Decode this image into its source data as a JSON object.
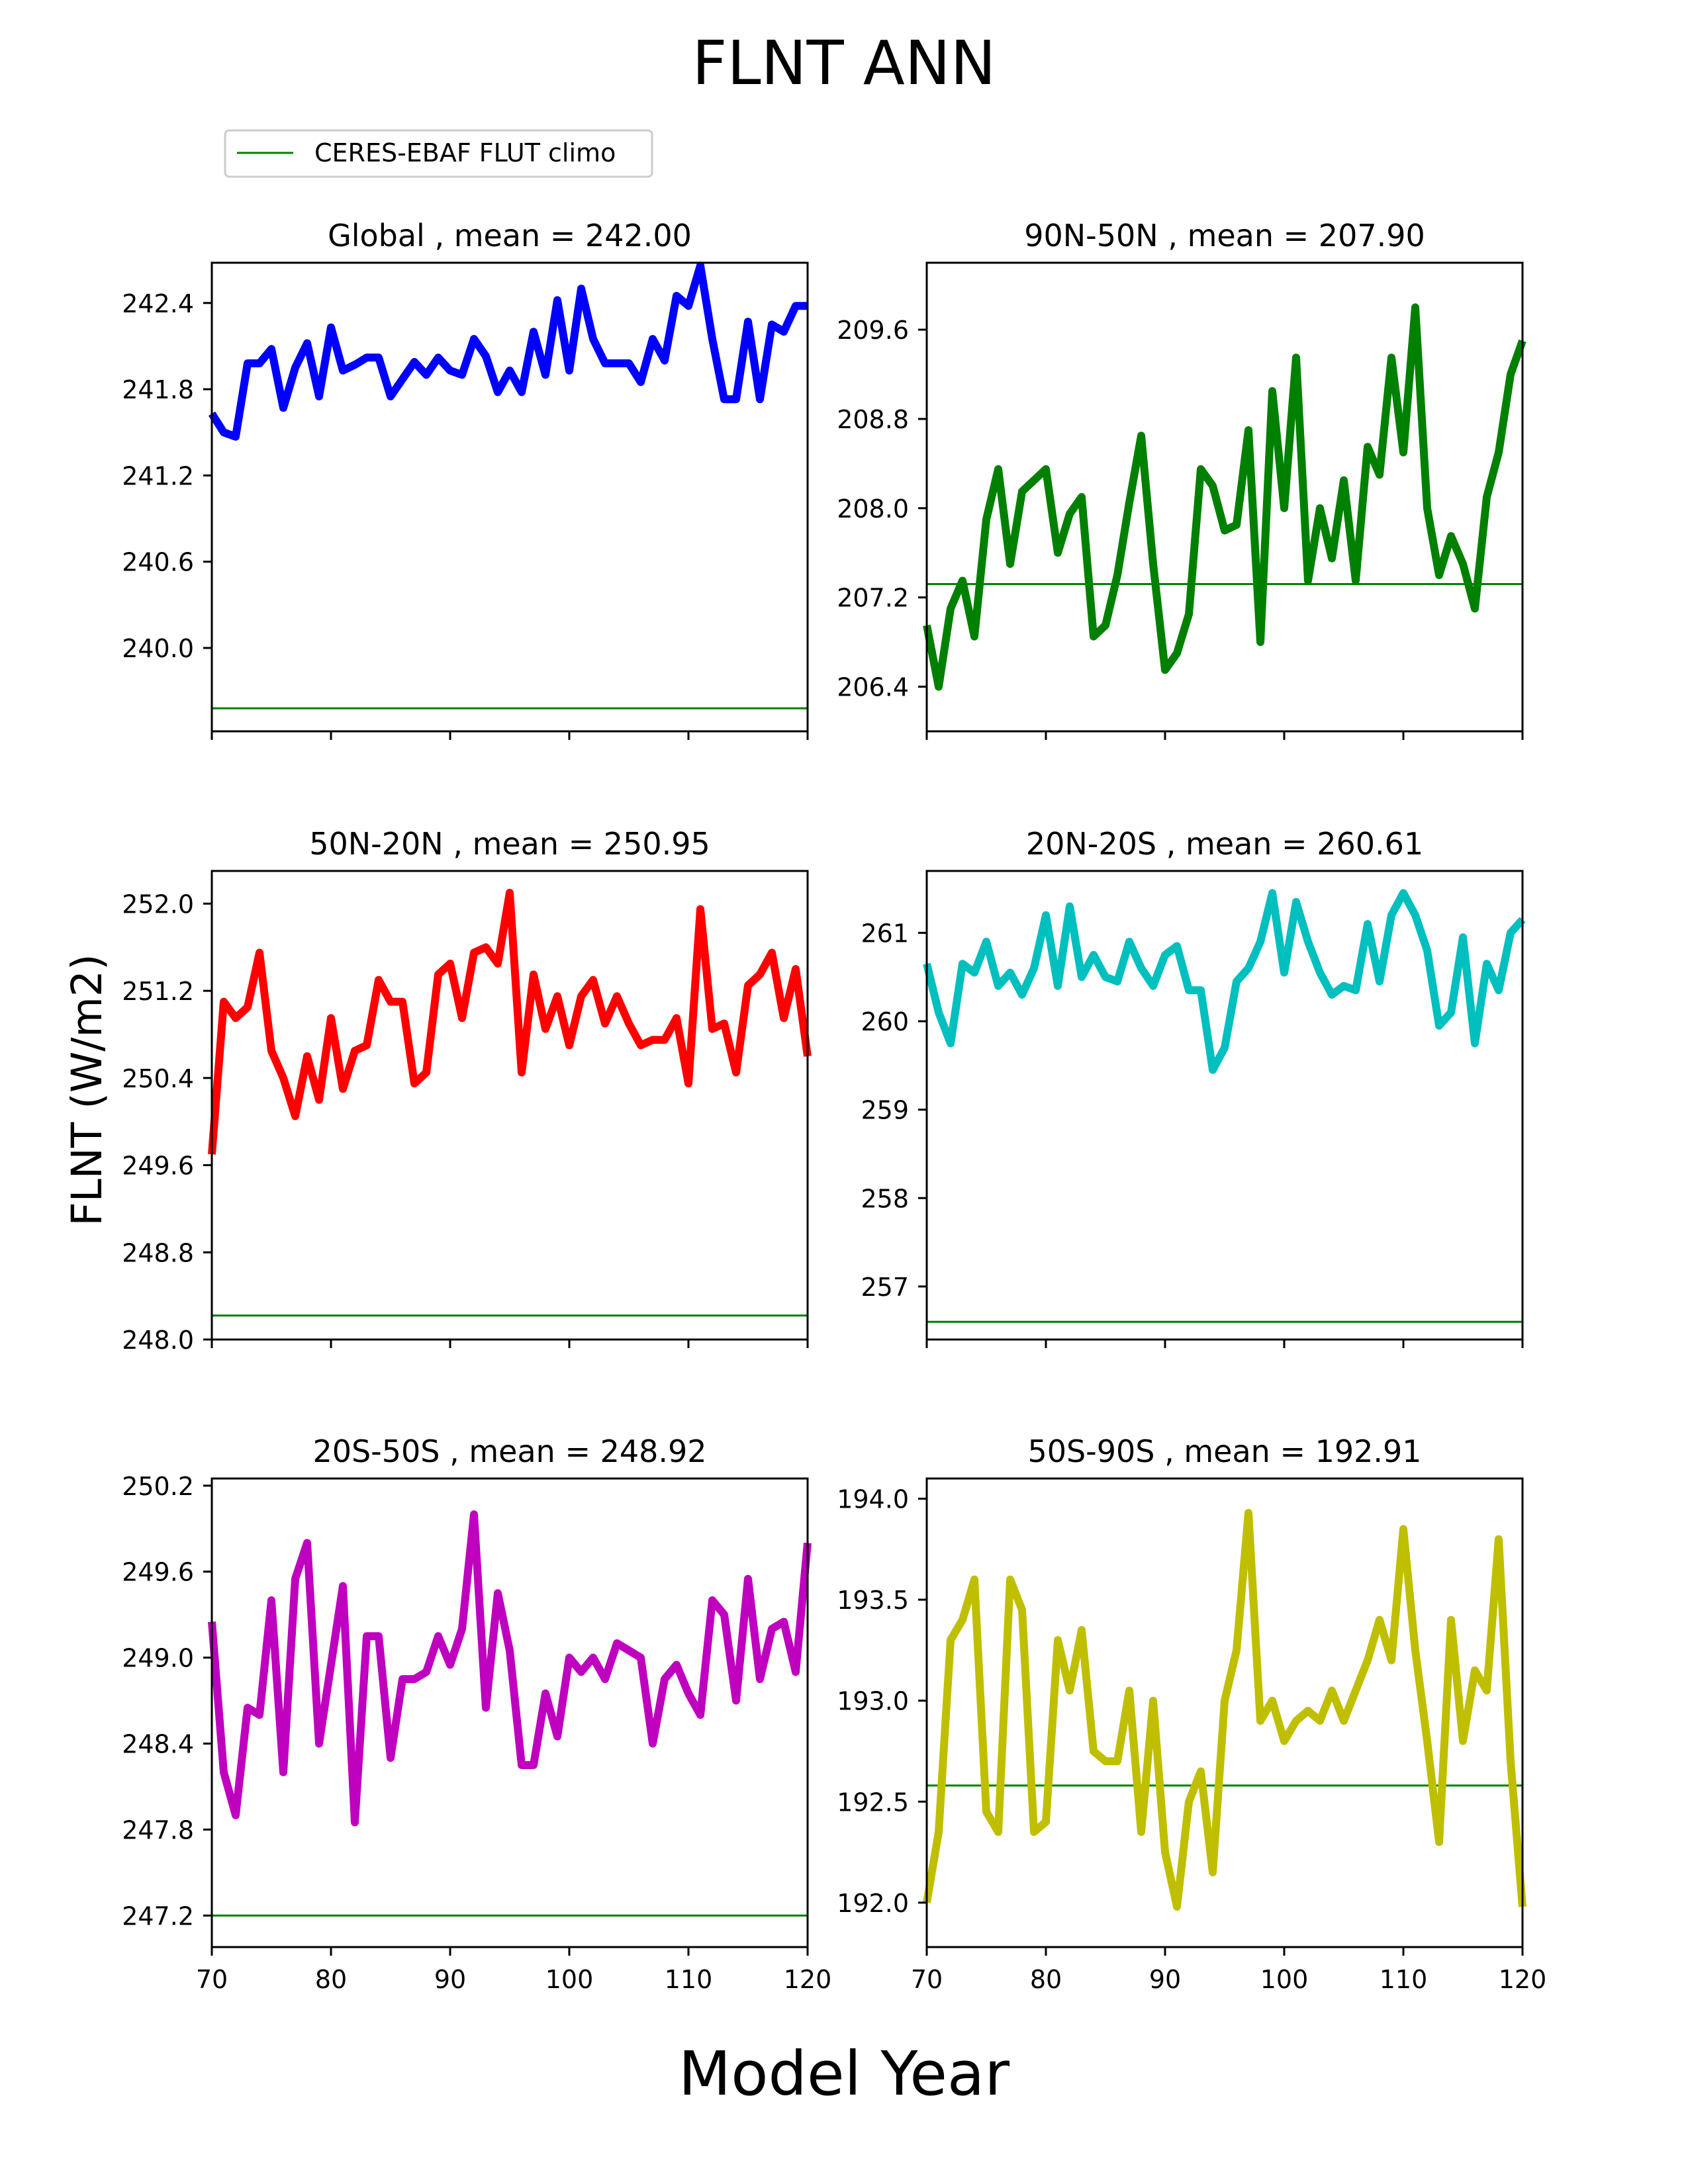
{
  "title": "FLNT ANN",
  "xlabel": "Model Year",
  "ylabel": "FLNT (W/m2)",
  "legend": {
    "label": "CERES-EBAF FLUT climo",
    "color": "#008000"
  },
  "chart_data": [
    {
      "type": "line",
      "title": "Global , mean = 242.00",
      "color": "#0000ff",
      "xlim": [
        70,
        120
      ],
      "ylim": [
        239.42,
        242.68
      ],
      "yticks": [
        240.0,
        240.6,
        241.2,
        241.8,
        242.4
      ],
      "ytick_decimals": 1,
      "xticks": [
        70,
        80,
        90,
        100,
        110,
        120
      ],
      "show_xticklabels": false,
      "climo": 239.58,
      "x": [
        70,
        71,
        72,
        73,
        74,
        75,
        76,
        77,
        78,
        79,
        80,
        81,
        82,
        83,
        84,
        85,
        86,
        87,
        88,
        89,
        90,
        91,
        92,
        93,
        94,
        95,
        96,
        97,
        98,
        99,
        100,
        101,
        102,
        103,
        104,
        105,
        106,
        107,
        108,
        109,
        110,
        111,
        112,
        113,
        114,
        115,
        116,
        117,
        118,
        119,
        120
      ],
      "values": [
        241.63,
        241.5,
        241.47,
        241.98,
        241.98,
        242.08,
        241.67,
        241.95,
        242.12,
        241.75,
        242.23,
        241.93,
        241.97,
        242.02,
        242.02,
        241.75,
        241.87,
        241.99,
        241.9,
        242.02,
        241.93,
        241.9,
        242.15,
        242.03,
        241.78,
        241.93,
        241.78,
        242.2,
        241.9,
        242.42,
        241.93,
        242.5,
        242.15,
        241.98,
        241.98,
        241.98,
        241.85,
        242.15,
        242.0,
        242.45,
        242.38,
        242.66,
        242.15,
        241.73,
        241.73,
        242.27,
        241.73,
        242.25,
        242.2,
        242.38,
        242.38
      ]
    },
    {
      "type": "line",
      "title": "90N-50N , mean = 207.90",
      "color": "#008000",
      "xlim": [
        70,
        120
      ],
      "ylim": [
        206.0,
        210.2
      ],
      "yticks": [
        206.4,
        207.2,
        208.0,
        208.8,
        209.6
      ],
      "ytick_decimals": 1,
      "xticks": [
        70,
        80,
        90,
        100,
        110,
        120
      ],
      "show_xticklabels": false,
      "climo": 207.32,
      "x": [
        70,
        71,
        72,
        73,
        74,
        75,
        76,
        77,
        78,
        79,
        80,
        81,
        82,
        83,
        84,
        85,
        86,
        87,
        88,
        89,
        90,
        91,
        92,
        93,
        94,
        95,
        96,
        97,
        98,
        99,
        100,
        101,
        102,
        103,
        104,
        105,
        106,
        107,
        108,
        109,
        110,
        111,
        112,
        113,
        114,
        115,
        116,
        117,
        118,
        119,
        120
      ],
      "values": [
        206.95,
        206.4,
        207.1,
        207.35,
        206.85,
        207.9,
        208.35,
        207.5,
        208.15,
        208.25,
        208.35,
        207.6,
        207.95,
        208.1,
        206.85,
        206.95,
        207.4,
        208.05,
        208.65,
        207.5,
        206.55,
        206.7,
        207.05,
        208.35,
        208.2,
        207.8,
        207.85,
        208.7,
        206.8,
        209.05,
        208.0,
        209.35,
        207.35,
        208.0,
        207.55,
        208.25,
        207.35,
        208.55,
        208.3,
        209.35,
        208.5,
        209.8,
        208.0,
        207.4,
        207.75,
        207.5,
        207.1,
        208.1,
        208.5,
        209.2,
        209.5
      ]
    },
    {
      "type": "line",
      "title": "50N-20N , mean = 250.95",
      "color": "#ff0000",
      "xlim": [
        70,
        120
      ],
      "ylim": [
        248.0,
        252.3
      ],
      "yticks": [
        248.0,
        248.8,
        249.6,
        250.4,
        251.2,
        252.0
      ],
      "ytick_decimals": 1,
      "xticks": [
        70,
        80,
        90,
        100,
        110,
        120
      ],
      "show_xticklabels": false,
      "climo": 248.22,
      "x": [
        70,
        71,
        72,
        73,
        74,
        75,
        76,
        77,
        78,
        79,
        80,
        81,
        82,
        83,
        84,
        85,
        86,
        87,
        88,
        89,
        90,
        91,
        92,
        93,
        94,
        95,
        96,
        97,
        98,
        99,
        100,
        101,
        102,
        103,
        104,
        105,
        106,
        107,
        108,
        109,
        110,
        111,
        112,
        113,
        114,
        115,
        116,
        117,
        118,
        119,
        120
      ],
      "values": [
        249.7,
        251.1,
        250.95,
        251.05,
        251.55,
        250.65,
        250.4,
        250.05,
        250.6,
        250.2,
        250.95,
        250.3,
        250.65,
        250.7,
        251.3,
        251.1,
        251.1,
        250.35,
        250.45,
        251.35,
        251.45,
        250.95,
        251.55,
        251.6,
        251.45,
        252.1,
        250.45,
        251.35,
        250.85,
        251.15,
        250.7,
        251.15,
        251.3,
        250.9,
        251.15,
        250.9,
        250.7,
        250.75,
        250.75,
        250.95,
        250.35,
        251.95,
        250.85,
        250.9,
        250.45,
        251.25,
        251.35,
        251.55,
        250.95,
        251.4,
        250.6
      ]
    },
    {
      "type": "line",
      "title": "20N-20S , mean = 260.61",
      "color": "#00bfbf",
      "xlim": [
        70,
        120
      ],
      "ylim": [
        256.4,
        261.7
      ],
      "yticks": [
        257,
        258,
        259,
        260,
        261
      ],
      "ytick_decimals": 0,
      "xticks": [
        70,
        80,
        90,
        100,
        110,
        120
      ],
      "show_xticklabels": false,
      "climo": 256.6,
      "x": [
        70,
        71,
        72,
        73,
        74,
        75,
        76,
        77,
        78,
        79,
        80,
        81,
        82,
        83,
        84,
        85,
        86,
        87,
        88,
        89,
        90,
        91,
        92,
        93,
        94,
        95,
        96,
        97,
        98,
        99,
        100,
        101,
        102,
        103,
        104,
        105,
        106,
        107,
        108,
        109,
        110,
        111,
        112,
        113,
        114,
        115,
        116,
        117,
        118,
        119,
        120
      ],
      "values": [
        260.65,
        260.1,
        259.75,
        260.65,
        260.55,
        260.9,
        260.4,
        260.55,
        260.3,
        260.6,
        261.2,
        260.4,
        261.3,
        260.5,
        260.75,
        260.5,
        260.45,
        260.9,
        260.6,
        260.4,
        260.75,
        260.85,
        260.35,
        260.35,
        259.45,
        259.7,
        260.45,
        260.6,
        260.9,
        261.45,
        260.55,
        261.35,
        260.9,
        260.55,
        260.3,
        260.4,
        260.35,
        261.1,
        260.45,
        261.2,
        261.45,
        261.2,
        260.8,
        259.95,
        260.1,
        260.95,
        259.75,
        260.65,
        260.35,
        261.0,
        261.15
      ]
    },
    {
      "type": "line",
      "title": "20S-50S , mean = 248.92",
      "color": "#bf00bf",
      "xlim": [
        70,
        120
      ],
      "ylim": [
        246.98,
        250.25
      ],
      "yticks": [
        247.2,
        247.8,
        248.4,
        249.0,
        249.6,
        250.2
      ],
      "ytick_decimals": 1,
      "xticks": [
        70,
        80,
        90,
        100,
        110,
        120
      ],
      "show_xticklabels": true,
      "climo": 247.2,
      "x": [
        70,
        71,
        72,
        73,
        74,
        75,
        76,
        77,
        78,
        79,
        80,
        81,
        82,
        83,
        84,
        85,
        86,
        87,
        88,
        89,
        90,
        91,
        92,
        93,
        94,
        95,
        96,
        97,
        98,
        99,
        100,
        101,
        102,
        103,
        104,
        105,
        106,
        107,
        108,
        109,
        110,
        111,
        112,
        113,
        114,
        115,
        116,
        117,
        118,
        119,
        120
      ],
      "values": [
        249.25,
        248.2,
        247.9,
        248.65,
        248.6,
        249.4,
        248.2,
        249.55,
        249.8,
        248.4,
        248.95,
        249.5,
        247.85,
        249.15,
        249.15,
        248.3,
        248.85,
        248.85,
        248.9,
        249.15,
        248.95,
        249.2,
        250.0,
        248.65,
        249.45,
        249.05,
        248.25,
        248.25,
        248.75,
        248.45,
        249.0,
        248.9,
        249.0,
        248.85,
        249.1,
        249.05,
        249.0,
        248.4,
        248.85,
        248.95,
        248.75,
        248.6,
        249.4,
        249.3,
        248.7,
        249.55,
        248.85,
        249.2,
        249.25,
        248.9,
        249.8
      ]
    },
    {
      "type": "line",
      "title": "50S-90S , mean = 192.91",
      "color": "#bfbf00",
      "xlim": [
        70,
        120
      ],
      "ylim": [
        191.78,
        194.1
      ],
      "yticks": [
        192.0,
        192.5,
        193.0,
        193.5,
        194.0
      ],
      "ytick_decimals": 1,
      "xticks": [
        70,
        80,
        90,
        100,
        110,
        120
      ],
      "show_xticklabels": true,
      "climo": 192.58,
      "x": [
        70,
        71,
        72,
        73,
        74,
        75,
        76,
        77,
        78,
        79,
        80,
        81,
        82,
        83,
        84,
        85,
        86,
        87,
        88,
        89,
        90,
        91,
        92,
        93,
        94,
        95,
        96,
        97,
        98,
        99,
        100,
        101,
        102,
        103,
        104,
        105,
        106,
        107,
        108,
        109,
        110,
        111,
        112,
        113,
        114,
        115,
        116,
        117,
        118,
        119,
        120
      ],
      "values": [
        192.0,
        192.35,
        193.3,
        193.4,
        193.6,
        192.45,
        192.35,
        193.6,
        193.45,
        192.35,
        192.4,
        193.3,
        193.05,
        193.35,
        192.75,
        192.7,
        192.7,
        193.05,
        192.35,
        193.0,
        192.25,
        191.98,
        192.5,
        192.65,
        192.15,
        193.0,
        193.25,
        193.93,
        192.9,
        193.0,
        192.8,
        192.9,
        192.95,
        192.9,
        193.05,
        192.9,
        193.05,
        193.2,
        193.4,
        193.2,
        193.85,
        193.25,
        192.8,
        192.3,
        193.4,
        192.8,
        193.15,
        193.05,
        193.8,
        192.7,
        191.98
      ]
    }
  ]
}
